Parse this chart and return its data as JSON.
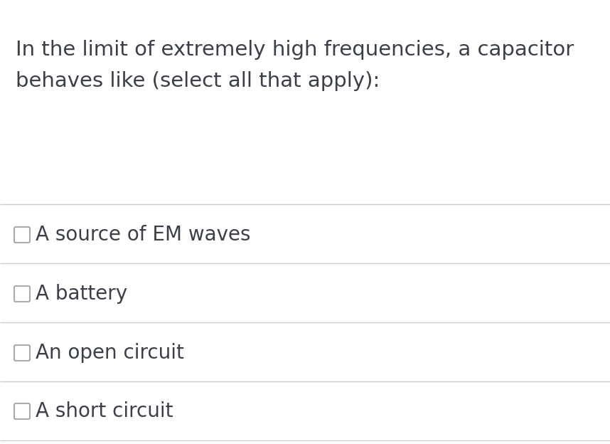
{
  "background_color": "#ffffff",
  "question_line1": "In the limit of extremely high frequencies, a capacitor",
  "question_line2": "behaves like (select all that apply):",
  "question_color": "#3a3f4a",
  "question_fontsize": 21,
  "options": [
    "A source of EM waves",
    "A battery",
    "An open circuit",
    "A short circuit"
  ],
  "option_fontsize": 20,
  "option_color": "#3a3f4a",
  "checkbox_edge_color": "#aaaaaa",
  "line_color": "#cccccc",
  "line_width": 1.0,
  "fig_width": 8.58,
  "fig_height": 6.24,
  "dpi": 100
}
